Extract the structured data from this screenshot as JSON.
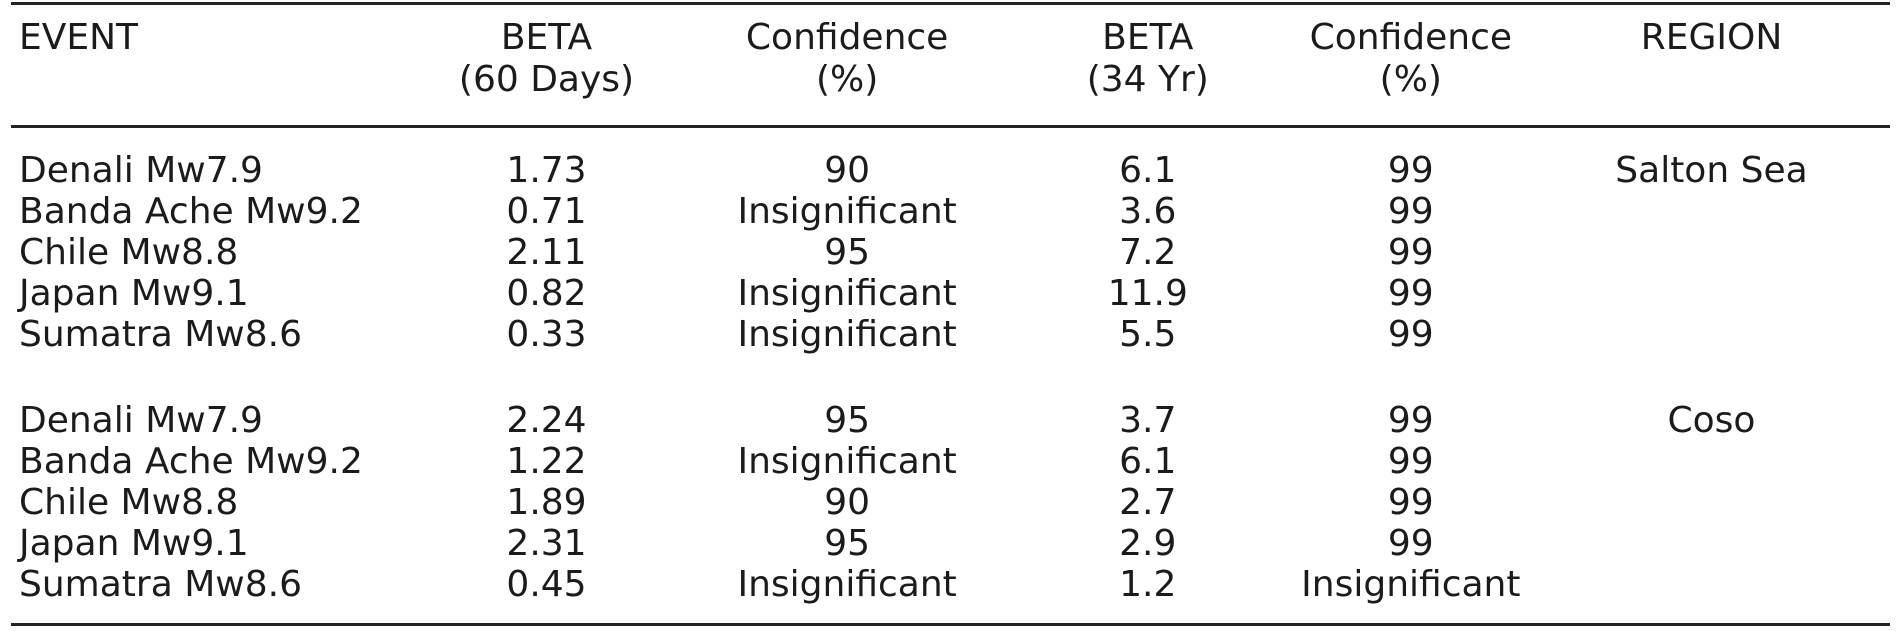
{
  "page": {
    "background": "#ffffff",
    "text_color": "#1b1b1b",
    "rule_color": "#232323"
  },
  "table": {
    "columns": [
      {
        "label": "EVENT",
        "sub": ""
      },
      {
        "label": "BETA",
        "sub": "(60 Days)"
      },
      {
        "label": "Confidence",
        "sub": "(%)"
      },
      {
        "label": "BETA",
        "sub": "(34 Yr)"
      },
      {
        "label": "Confidence",
        "sub": "(%)"
      },
      {
        "label": "REGION",
        "sub": ""
      }
    ],
    "groups": [
      {
        "region": "Salton Sea",
        "rows": [
          {
            "event": "Denali Mw7.9",
            "beta_60d": "1.73",
            "conf_60d": "90",
            "beta_34yr": "6.1",
            "conf_34yr": "99",
            "region": "Salton Sea"
          },
          {
            "event": "Banda Ache Mw9.2",
            "beta_60d": "0.71",
            "conf_60d": "Insignificant",
            "beta_34yr": "3.6",
            "conf_34yr": "99",
            "region": ""
          },
          {
            "event": "Chile Mw8.8",
            "beta_60d": "2.11",
            "conf_60d": "95",
            "beta_34yr": "7.2",
            "conf_34yr": "99",
            "region": ""
          },
          {
            "event": "Japan Mw9.1",
            "beta_60d": "0.82",
            "conf_60d": "Insignificant",
            "beta_34yr": "11.9",
            "conf_34yr": "99",
            "region": ""
          },
          {
            "event": "Sumatra Mw8.6",
            "beta_60d": "0.33",
            "conf_60d": "Insignificant",
            "beta_34yr": "5.5",
            "conf_34yr": "99",
            "region": ""
          }
        ]
      },
      {
        "region": "Coso",
        "rows": [
          {
            "event": "Denali Mw7.9",
            "beta_60d": "2.24",
            "conf_60d": "95",
            "beta_34yr": "3.7",
            "conf_34yr": "99",
            "region": "Coso"
          },
          {
            "event": "Banda Ache Mw9.2",
            "beta_60d": "1.22",
            "conf_60d": "Insignificant",
            "beta_34yr": "6.1",
            "conf_34yr": "99",
            "region": ""
          },
          {
            "event": "Chile Mw8.8",
            "beta_60d": "1.89",
            "conf_60d": "90",
            "beta_34yr": "2.7",
            "conf_34yr": "99",
            "region": ""
          },
          {
            "event": "Japan Mw9.1",
            "beta_60d": "2.31",
            "conf_60d": "95",
            "beta_34yr": "2.9",
            "conf_34yr": "99",
            "region": ""
          },
          {
            "event": "Sumatra Mw8.6",
            "beta_60d": "0.45",
            "conf_60d": "Insignificant",
            "beta_34yr": "1.2",
            "conf_34yr": "Insignificant",
            "region": ""
          }
        ]
      }
    ]
  }
}
